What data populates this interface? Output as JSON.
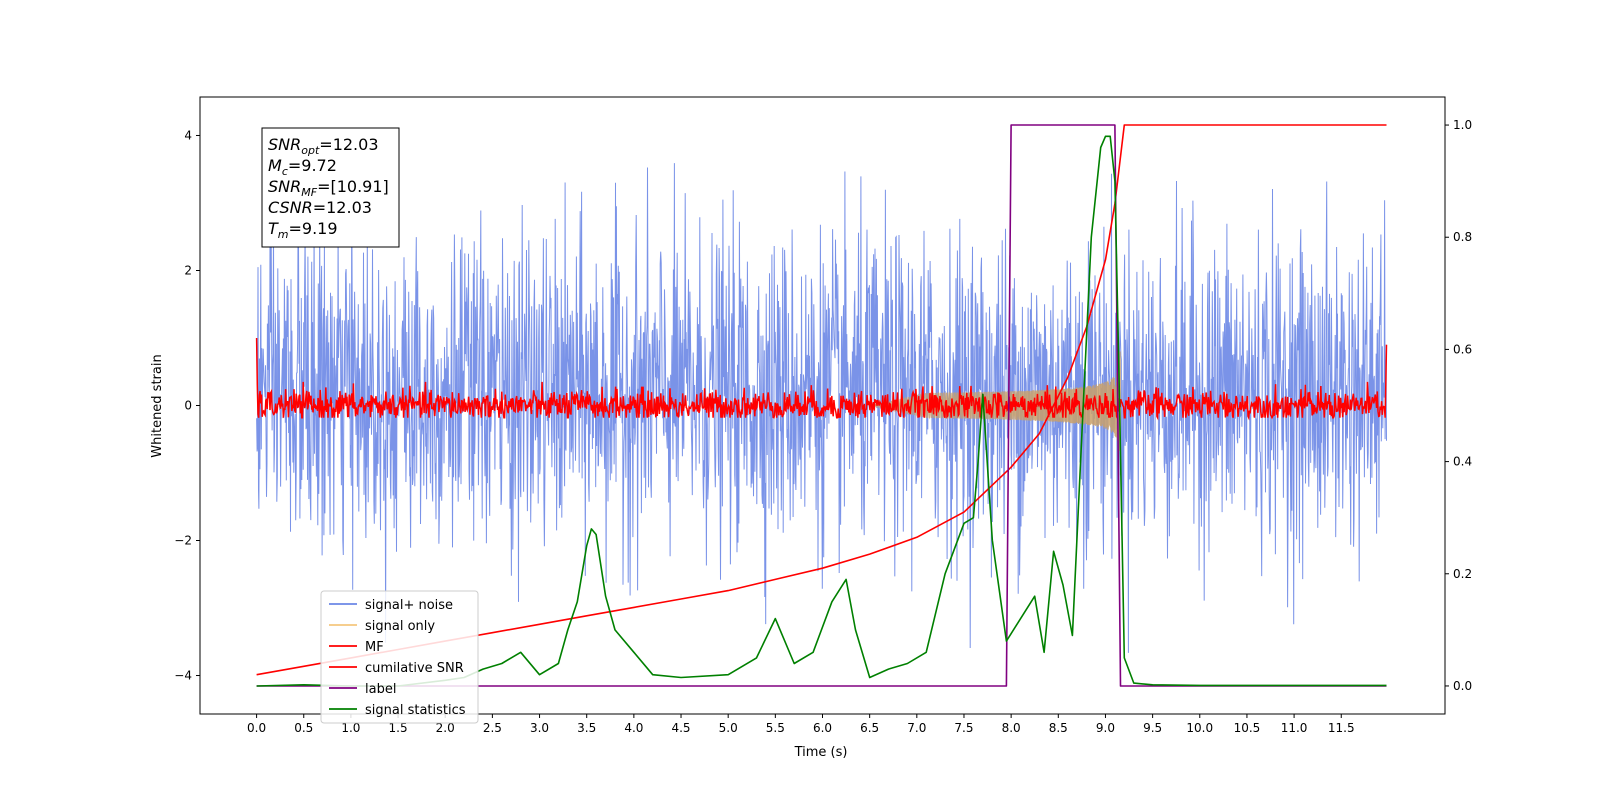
{
  "chart_data": {
    "type": "line",
    "title": "",
    "xlabel": "Time (s)",
    "ylabel": "Whitened strain",
    "y2label": "",
    "xlim": [
      -0.6,
      12.6
    ],
    "ylim": [
      -4.57,
      4.57
    ],
    "y2lim": [
      -0.05,
      1.05
    ],
    "x_ticks": [
      0.0,
      0.5,
      1.0,
      1.5,
      2.0,
      2.5,
      3.0,
      3.5,
      4.0,
      4.5,
      5.0,
      5.5,
      6.0,
      6.5,
      7.0,
      7.5,
      8.0,
      8.5,
      9.0,
      9.5,
      10.0,
      10.5,
      11.0,
      11.5
    ],
    "x_tick_labels": [
      "0.0",
      "0.5",
      "1.0",
      "1.5",
      "2.0",
      "2.5",
      "3.0",
      "3.5",
      "4.0",
      "4.5",
      "5.0",
      "5.5",
      "6.0",
      "6.5",
      "7.0",
      "7.5",
      "8.0",
      "8.5",
      "9.0",
      "9.5",
      "10.0",
      "10.5",
      "11.0",
      "11.5"
    ],
    "y_ticks": [
      -4,
      -2,
      0,
      2,
      4
    ],
    "y_tick_labels": [
      "−4",
      "−2",
      "0",
      "2",
      "4"
    ],
    "y2_ticks": [
      0.0,
      0.2,
      0.4,
      0.6,
      0.8,
      1.0
    ],
    "y2_tick_labels": [
      "0.0",
      "0.2",
      "0.4",
      "0.6",
      "0.8",
      "1.0"
    ],
    "grid": false,
    "legend_position": "lower-left",
    "legend": [
      {
        "label": "signal+ noise",
        "color": "#6b87e6"
      },
      {
        "label": "signal only",
        "color": "#f5c77e"
      },
      {
        "label": "MF",
        "color": "#ff0000"
      },
      {
        "label": "cumilative SNR",
        "color": "#ff0000"
      },
      {
        "label": "label",
        "color": "#800080"
      },
      {
        "label": "signal statistics",
        "color": "#008000"
      }
    ],
    "annotation": [
      {
        "base": "SNR",
        "sub": "opt",
        "rest": "=12.03"
      },
      {
        "base": "M",
        "sub": "c",
        "rest": "=9.72"
      },
      {
        "base": "SNR",
        "sub": "MF",
        "rest": "=[10.91]"
      },
      {
        "base": "CSNR",
        "sub": "",
        "rest": "=12.03"
      },
      {
        "base": "T",
        "sub": "m",
        "rest": "=9.19"
      }
    ],
    "series": [
      {
        "name": "signal+ noise",
        "axis": "left",
        "color": "#6b87e6",
        "style": "noise",
        "x_range": [
          0.0,
          11.98
        ],
        "typical_range": [
          -2.2,
          2.6
        ],
        "extreme_range": [
          -4.1,
          4.15
        ]
      },
      {
        "name": "signal only",
        "axis": "left",
        "color": "#c9a06a",
        "style": "chirp",
        "x_range": [
          6.5,
          9.16
        ],
        "peak_amplitude": 1.05,
        "t_merger": 9.16
      },
      {
        "name": "MF",
        "axis": "left",
        "color": "#ff0000",
        "style": "mf",
        "x_range": [
          0.0,
          11.98
        ],
        "center": 0.0,
        "amplitude": 0.35
      },
      {
        "name": "cumilative SNR",
        "axis": "right",
        "color": "#ff0000",
        "style": "line",
        "x": [
          0.0,
          0.5,
          1.0,
          1.5,
          2.0,
          2.5,
          3.0,
          3.5,
          4.0,
          4.5,
          5.0,
          5.5,
          6.0,
          6.5,
          7.0,
          7.5,
          8.0,
          8.3,
          8.6,
          8.8,
          9.0,
          9.1,
          9.15,
          9.2,
          9.5,
          10.0,
          11.0,
          11.98
        ],
        "y": [
          0.02,
          0.035,
          0.05,
          0.065,
          0.08,
          0.095,
          0.11,
          0.125,
          0.14,
          0.155,
          0.17,
          0.19,
          0.21,
          0.235,
          0.265,
          0.31,
          0.39,
          0.45,
          0.55,
          0.64,
          0.76,
          0.86,
          0.93,
          1.0,
          1.0,
          1.0,
          1.0,
          1.0
        ]
      },
      {
        "name": "label",
        "axis": "right",
        "color": "#800080",
        "style": "line",
        "x": [
          0.0,
          7.95,
          8.0,
          9.1,
          9.16,
          11.98
        ],
        "y": [
          0.0,
          0.0,
          1.0,
          1.0,
          0.0,
          0.0
        ]
      },
      {
        "name": "signal statistics",
        "axis": "right",
        "color": "#008000",
        "style": "line",
        "x": [
          0.0,
          0.5,
          1.0,
          1.5,
          2.0,
          2.2,
          2.4,
          2.6,
          2.8,
          3.0,
          3.2,
          3.3,
          3.4,
          3.5,
          3.55,
          3.6,
          3.7,
          3.8,
          4.0,
          4.2,
          4.5,
          5.0,
          5.3,
          5.5,
          5.7,
          5.9,
          6.1,
          6.25,
          6.35,
          6.5,
          6.7,
          6.9,
          7.1,
          7.3,
          7.5,
          7.6,
          7.65,
          7.7,
          7.8,
          7.95,
          8.1,
          8.25,
          8.35,
          8.45,
          8.55,
          8.65,
          8.75,
          8.85,
          8.95,
          9.0,
          9.05,
          9.1,
          9.15,
          9.2,
          9.3,
          9.5,
          10.0,
          11.0,
          11.98
        ],
        "y": [
          0.0,
          0.002,
          0.0,
          0.0,
          0.01,
          0.015,
          0.03,
          0.04,
          0.06,
          0.02,
          0.04,
          0.1,
          0.15,
          0.25,
          0.28,
          0.27,
          0.16,
          0.1,
          0.06,
          0.02,
          0.015,
          0.02,
          0.05,
          0.12,
          0.04,
          0.06,
          0.15,
          0.19,
          0.1,
          0.015,
          0.03,
          0.04,
          0.06,
          0.2,
          0.29,
          0.3,
          0.4,
          0.52,
          0.26,
          0.08,
          0.12,
          0.16,
          0.06,
          0.24,
          0.18,
          0.09,
          0.45,
          0.8,
          0.96,
          0.98,
          0.98,
          0.9,
          0.5,
          0.05,
          0.005,
          0.002,
          0.001,
          0.001,
          0.001
        ]
      }
    ]
  }
}
